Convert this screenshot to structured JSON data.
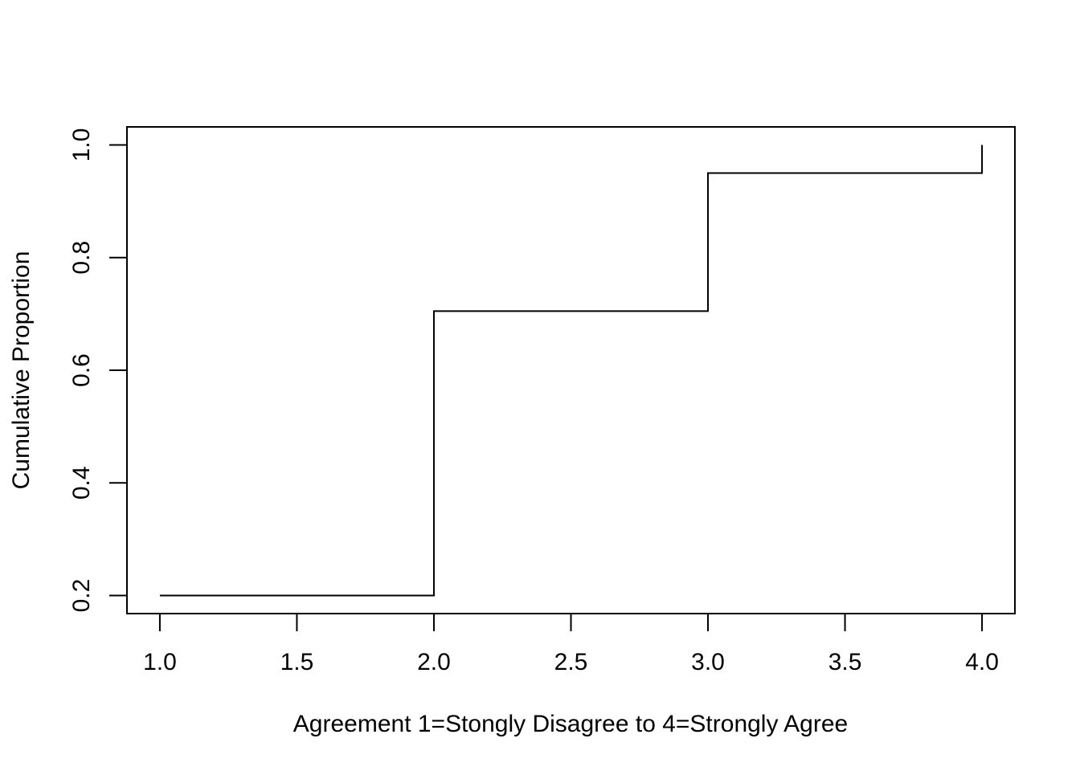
{
  "chart_data": {
    "type": "line",
    "step": true,
    "title": "",
    "xlabel": "Agreement 1=Stongly Disagree to 4=Strongly Agree",
    "ylabel": "Cumulative Proportion",
    "xlim": [
      0.88,
      4.12
    ],
    "ylim": [
      0.168,
      1.032
    ],
    "x_ticks": [
      1.0,
      1.5,
      2.0,
      2.5,
      3.0,
      3.5,
      4.0
    ],
    "x_tick_labels": [
      "1.0",
      "1.5",
      "2.0",
      "2.5",
      "3.0",
      "3.5",
      "4.0"
    ],
    "y_ticks": [
      0.2,
      0.4,
      0.6,
      0.8,
      1.0
    ],
    "y_tick_labels": [
      "0.2",
      "0.4",
      "0.6",
      "0.8",
      "1.0"
    ],
    "grid": false,
    "series": [
      {
        "x": [
          1,
          2,
          3,
          4
        ],
        "y": [
          0.2,
          0.705,
          0.95,
          1.0
        ]
      }
    ]
  }
}
